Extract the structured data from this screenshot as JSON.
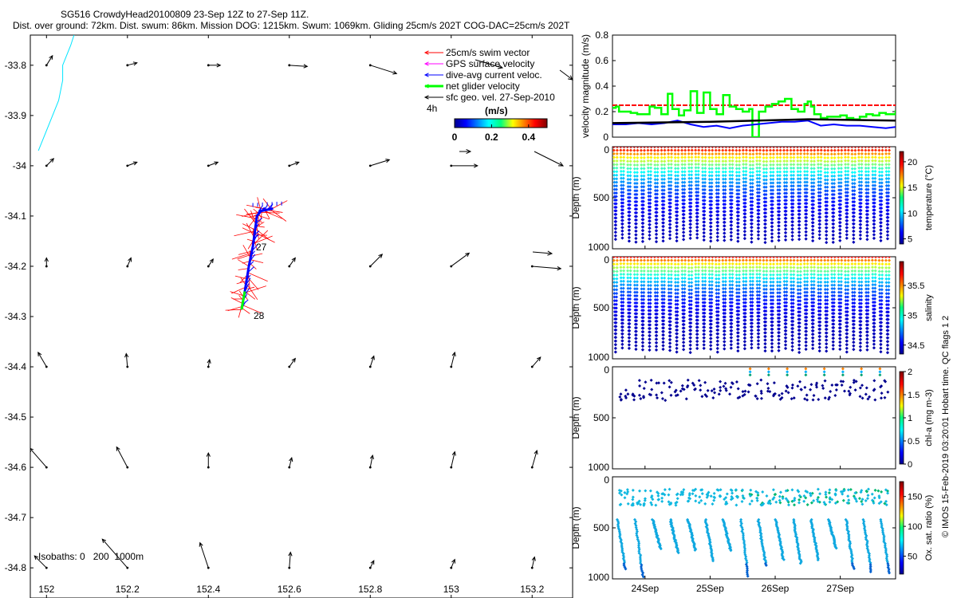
{
  "header": {
    "title_line1": "SG516 CrowdyHead20100809 23-Sep 12Z to 27-Sep 11Z.",
    "title_line2": "Dist. over ground: 72km. Dist. swum: 86km. Mission DOG: 1215km. Swum: 1069km. Gliding 25cm/s 202T COG-DAC=25cm/s 202T"
  },
  "credit": "© IMOS 15-Feb-2019 03:20:01  Hobart time. QC flags 1  2",
  "colors": {
    "swim": "#ff0000",
    "gps": "#ff00ff",
    "dac": "#0000ff",
    "net": "#00ff00",
    "sfc": "#000000",
    "isobath": "#00e5ff"
  },
  "chart_data": [
    {
      "type": "map",
      "xticks": [
        "152",
        "152.2",
        "152.4",
        "152.6",
        "152.8",
        "153",
        "153.2"
      ],
      "yticks": [
        "-33.8",
        "-33.9",
        "-34",
        "-34.1",
        "-34.2",
        "-34.3",
        "-34.4",
        "-34.5",
        "-34.6",
        "-34.7",
        "-34.8"
      ],
      "xlim": [
        151.96,
        153.3
      ],
      "ylim": [
        -34.86,
        -33.74
      ],
      "legend": {
        "items": [
          "25cm/s swim vector",
          "GPS surface velocity",
          "dive-avg current veloc.",
          "net glider velocity",
          "sfc geo. vel. 27-Sep-2010"
        ],
        "time_label": "4h",
        "colorbar_title": "(m/s)",
        "colorbar_ticks": [
          "0",
          "0.2",
          "0.4"
        ],
        "colorbar_range": [
          0,
          0.5
        ]
      },
      "day_labels": [
        "27",
        "28"
      ],
      "isobath_label": "Isobaths: 0   200  1000m",
      "sfc_vectors": [
        [
          152.0,
          -33.8,
          0.05,
          0.08
        ],
        [
          152.2,
          -33.8,
          0.08,
          0.02
        ],
        [
          152.4,
          -33.8,
          0.1,
          0.0
        ],
        [
          152.6,
          -33.8,
          0.15,
          -0.01
        ],
        [
          152.8,
          -33.8,
          0.22,
          -0.07
        ],
        [
          152.0,
          -34.0,
          0.06,
          0.06
        ],
        [
          152.2,
          -34.0,
          0.08,
          0.03
        ],
        [
          152.4,
          -34.0,
          0.08,
          0.03
        ],
        [
          152.6,
          -34.0,
          0.08,
          0.03
        ],
        [
          152.8,
          -34.0,
          0.16,
          0.05
        ],
        [
          153.0,
          -34.0,
          0.22,
          0.0
        ],
        [
          152.0,
          -34.2,
          0.0,
          0.07
        ],
        [
          152.2,
          -34.2,
          0.03,
          0.07
        ],
        [
          152.4,
          -34.2,
          0.04,
          0.06
        ],
        [
          152.6,
          -34.2,
          0.05,
          0.07
        ],
        [
          152.8,
          -34.2,
          0.1,
          0.1
        ],
        [
          153.0,
          -34.2,
          0.15,
          0.11
        ],
        [
          153.2,
          -34.2,
          0.24,
          -0.02
        ],
        [
          152.0,
          -34.4,
          -0.07,
          0.12
        ],
        [
          152.2,
          -34.4,
          -0.01,
          0.11
        ],
        [
          152.4,
          -34.4,
          0.01,
          0.06
        ],
        [
          152.6,
          -34.4,
          0.05,
          0.07
        ],
        [
          152.8,
          -34.4,
          0.03,
          0.09
        ],
        [
          153.0,
          -34.4,
          0.03,
          0.12
        ],
        [
          153.2,
          -34.4,
          0.07,
          0.08
        ],
        [
          152.0,
          -34.6,
          -0.14,
          0.16
        ],
        [
          152.2,
          -34.6,
          -0.09,
          0.17
        ],
        [
          152.4,
          -34.6,
          0.0,
          0.12
        ],
        [
          152.6,
          -34.6,
          0.02,
          0.08
        ],
        [
          152.8,
          -34.6,
          0.02,
          0.1
        ],
        [
          153.0,
          -34.6,
          0.03,
          0.13
        ],
        [
          153.2,
          -34.6,
          0.04,
          0.14
        ],
        [
          152.0,
          -34.8,
          -0.1,
          0.1
        ],
        [
          152.2,
          -34.8,
          -0.21,
          0.24
        ],
        [
          152.4,
          -34.8,
          -0.07,
          0.21
        ],
        [
          152.6,
          -34.8,
          0.01,
          0.13
        ],
        [
          152.8,
          -34.8,
          0.03,
          0.06
        ],
        [
          153.0,
          -34.8,
          0.03,
          0.07
        ],
        [
          153.2,
          -34.8,
          0.02,
          0.09
        ]
      ],
      "glider_track": [
        [
          152.482,
          -34.286
        ],
        [
          152.49,
          -34.25
        ],
        [
          152.5,
          -34.2
        ],
        [
          152.51,
          -34.16
        ],
        [
          152.515,
          -34.13
        ],
        [
          152.52,
          -34.1
        ],
        [
          152.53,
          -34.09
        ],
        [
          152.56,
          -34.085
        ]
      ],
      "isobath": [
        [
          152.068,
          -33.74
        ],
        [
          152.06,
          -33.76
        ],
        [
          152.04,
          -33.8
        ],
        [
          152.04,
          -33.83
        ],
        [
          152.03,
          -33.87
        ],
        [
          152.0,
          -33.93
        ],
        [
          151.98,
          -33.97
        ]
      ]
    },
    {
      "type": "line",
      "ylabel": "velocity magnitude (m/s)",
      "ylim": [
        0,
        0.8
      ],
      "yticks": [
        "0",
        "0.2",
        "0.4",
        "0.6",
        "0.8"
      ],
      "xlim": [
        0,
        4.35
      ],
      "series": [
        {
          "name": "25cm/s swim vector",
          "color": "#ff0000",
          "x": [
            0,
            4.35
          ],
          "y": [
            0.25,
            0.25
          ]
        },
        {
          "name": "net glider velocity",
          "color": "#00ff00",
          "x": [
            0,
            0.05,
            0.1,
            0.2,
            0.28,
            0.38,
            0.48,
            0.57,
            0.65,
            0.75,
            0.85,
            0.92,
            1.02,
            1.1,
            1.2,
            1.3,
            1.4,
            1.5,
            1.6,
            1.7,
            1.8,
            1.9,
            2.0,
            2.1,
            2.15,
            2.25,
            2.35,
            2.45,
            2.55,
            2.65,
            2.75,
            2.85,
            2.95,
            3.0,
            3.05,
            3.1,
            3.2,
            3.3,
            3.4,
            3.5,
            3.6,
            3.7,
            3.8,
            3.9,
            4.0,
            4.1,
            4.2,
            4.35
          ],
          "y": [
            0.23,
            0.24,
            0.2,
            0.2,
            0.19,
            0.18,
            0.18,
            0.24,
            0.23,
            0.18,
            0.34,
            0.22,
            0.17,
            0.21,
            0.36,
            0.19,
            0.35,
            0.22,
            0.18,
            0.33,
            0.24,
            0.22,
            0.2,
            0.22,
            0.0,
            0.2,
            0.24,
            0.26,
            0.28,
            0.3,
            0.22,
            0.2,
            0.26,
            0.28,
            0.24,
            0.18,
            0.15,
            0.16,
            0.16,
            0.17,
            0.15,
            0.14,
            0.16,
            0.18,
            0.17,
            0.19,
            0.18,
            0.21
          ]
        },
        {
          "name": "dive-avg current veloc.",
          "color": "#0000ff",
          "x": [
            0,
            0.2,
            0.4,
            0.6,
            0.8,
            1.0,
            1.2,
            1.4,
            1.6,
            1.8,
            2.0,
            2.2,
            2.4,
            2.6,
            2.8,
            3.0,
            3.2,
            3.4,
            3.6,
            3.8,
            4.0,
            4.2,
            4.35
          ],
          "y": [
            0.1,
            0.1,
            0.11,
            0.1,
            0.11,
            0.13,
            0.1,
            0.08,
            0.09,
            0.07,
            0.09,
            0.1,
            0.11,
            0.12,
            0.12,
            0.13,
            0.09,
            0.1,
            0.09,
            0.09,
            0.08,
            0.07,
            0.08
          ]
        },
        {
          "name": "net",
          "color": "#000000",
          "x": [
            0,
            1.5,
            3.0,
            4.35
          ],
          "y": [
            0.11,
            0.12,
            0.14,
            0.13
          ]
        }
      ]
    },
    {
      "type": "scatter",
      "variable": "temperature",
      "ylabel": "Depth (m)",
      "ylim": [
        1000,
        0
      ],
      "yticks": [
        "0",
        "500",
        "1000"
      ],
      "colorbar_label": "temperature (°C)",
      "colorbar_range": [
        4,
        22
      ],
      "colorbar_ticks": [
        "5",
        "10",
        "15",
        "20"
      ],
      "profiles": 41,
      "surface_value": 21,
      "deep_value": 4.5,
      "depth_max": 940
    },
    {
      "type": "scatter",
      "variable": "salinity",
      "ylabel": "Depth (m)",
      "ylim": [
        1000,
        0
      ],
      "yticks": [
        "0",
        "500",
        "1000"
      ],
      "colorbar_label": "salinity",
      "colorbar_range": [
        34.35,
        35.9
      ],
      "colorbar_ticks": [
        "34.5",
        "35",
        "35.5"
      ],
      "profiles": 41,
      "surface_value": 35.7,
      "deep_value": 34.4,
      "depth_max": 940
    },
    {
      "type": "scatter",
      "variable": "chl-a",
      "ylabel": "Depth (m)",
      "ylim": [
        1000,
        0
      ],
      "yticks": [
        "0",
        "500",
        "1000"
      ],
      "colorbar_label": "chl-a (mg m-3)",
      "colorbar_range": [
        0,
        2
      ],
      "colorbar_ticks": [
        "0",
        "0.5",
        "1",
        "1.5",
        "2"
      ],
      "surface_value": 0.9,
      "deep_value": 0.05,
      "depth_max": 300
    },
    {
      "type": "scatter",
      "variable": "oxygen",
      "ylabel": "Depth (m)",
      "ylim": [
        1000,
        0
      ],
      "yticks": [
        "0",
        "500",
        "1000"
      ],
      "colorbar_label": "Ox. sat. ratio (%)",
      "colorbar_range": [
        20,
        175
      ],
      "colorbar_ticks": [
        "50",
        "100",
        "150"
      ],
      "surface_value": 110,
      "deep_value": 70,
      "depth_max": 1000,
      "xticks": [
        "24Sep",
        "25Sep",
        "26Sep",
        "27Sep"
      ],
      "xtick_days": [
        0.5,
        1.5,
        2.5,
        3.5
      ]
    }
  ]
}
